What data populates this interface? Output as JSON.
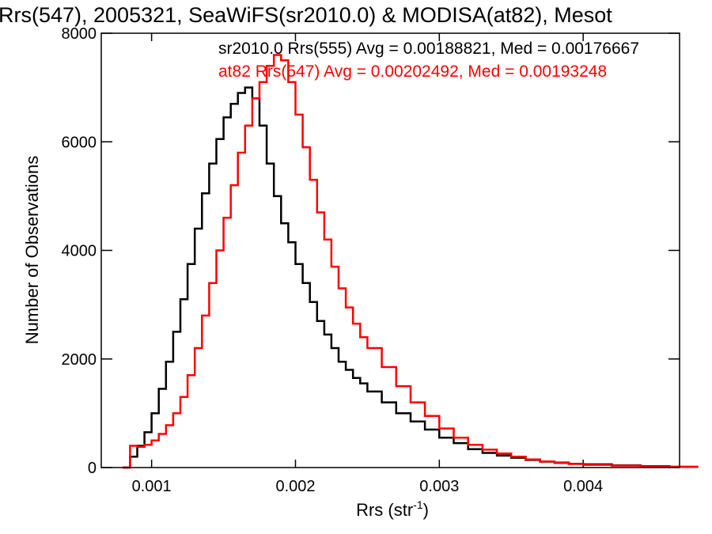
{
  "chart_data": {
    "type": "line",
    "title": "Rrs(547), 2005321, SeaWiFS(sr2010.0) & MODISA(at82), Mesot",
    "xlabel_main": "Rrs (str",
    "xlabel_sup": "-1",
    "xlabel_close": ")",
    "ylabel": "Number of Observations",
    "xlim": [
      0.00065,
      0.00467
    ],
    "ylim": [
      0,
      8000
    ],
    "x_ticks": [
      0.001,
      0.002,
      0.003,
      0.004
    ],
    "x_tick_labels": [
      "0.001",
      "0.002",
      "0.003",
      "0.004"
    ],
    "y_ticks": [
      0,
      2000,
      4000,
      6000,
      8000
    ],
    "y_tick_labels": [
      "0",
      "2000",
      "4000",
      "6000",
      "8000"
    ],
    "grid": false,
    "legend_position": "top-right",
    "series": [
      {
        "name": "sr2010.0 Rrs(555) Avg = 0.00188821, Med = 0.00176667",
        "color": "#000000",
        "x": [
          0.0008,
          0.00085,
          0.0009,
          0.00095,
          0.001,
          0.00105,
          0.0011,
          0.00115,
          0.0012,
          0.00125,
          0.0013,
          0.00135,
          0.0014,
          0.00145,
          0.0015,
          0.00155,
          0.0016,
          0.00165,
          0.0017,
          0.00175,
          0.0018,
          0.00185,
          0.0019,
          0.00195,
          0.002,
          0.00205,
          0.0021,
          0.00215,
          0.0022,
          0.00225,
          0.0023,
          0.00235,
          0.0024,
          0.00245,
          0.0025,
          0.0026,
          0.0027,
          0.0028,
          0.0029,
          0.003,
          0.0031,
          0.0032,
          0.0033,
          0.0034,
          0.0035,
          0.0036,
          0.0037,
          0.0038,
          0.0039,
          0.004,
          0.0042,
          0.0044,
          0.0046
        ],
        "values": [
          0,
          200,
          400,
          650,
          1000,
          1450,
          1950,
          2500,
          3100,
          3750,
          4400,
          5050,
          5600,
          6050,
          6450,
          6700,
          6900,
          7000,
          6800,
          6300,
          5600,
          5000,
          4500,
          4150,
          3750,
          3400,
          3050,
          2700,
          2450,
          2200,
          1950,
          1800,
          1650,
          1550,
          1400,
          1200,
          1000,
          850,
          700,
          550,
          450,
          340,
          270,
          220,
          180,
          140,
          110,
          90,
          70,
          60,
          40,
          25,
          15
        ]
      },
      {
        "name": "at82 Rrs(547) Avg = 0.00202492, Med = 0.00193248",
        "color": "#ff0000",
        "x": [
          0.0008,
          0.00085,
          0.0009,
          0.00095,
          0.001,
          0.00105,
          0.0011,
          0.00115,
          0.0012,
          0.00125,
          0.0013,
          0.00135,
          0.0014,
          0.00145,
          0.0015,
          0.00155,
          0.0016,
          0.00165,
          0.0017,
          0.00175,
          0.0018,
          0.00185,
          0.0019,
          0.00195,
          0.002,
          0.00205,
          0.0021,
          0.00215,
          0.0022,
          0.00225,
          0.0023,
          0.00235,
          0.0024,
          0.00245,
          0.0025,
          0.0026,
          0.0027,
          0.0028,
          0.0029,
          0.003,
          0.0031,
          0.0032,
          0.0033,
          0.0034,
          0.0035,
          0.0036,
          0.0037,
          0.0038,
          0.0039,
          0.004,
          0.0042,
          0.0044,
          0.0046
        ],
        "values": [
          0,
          400,
          380,
          420,
          500,
          620,
          780,
          1000,
          1300,
          1700,
          2200,
          2800,
          3400,
          4000,
          4600,
          5200,
          5800,
          6300,
          6800,
          7100,
          7400,
          7600,
          7500,
          7100,
          6500,
          5900,
          5300,
          4700,
          4200,
          3700,
          3300,
          2950,
          2650,
          2400,
          2200,
          1850,
          1500,
          1200,
          950,
          720,
          550,
          420,
          330,
          260,
          200,
          150,
          110,
          85,
          65,
          50,
          35,
          20,
          10
        ]
      }
    ]
  }
}
